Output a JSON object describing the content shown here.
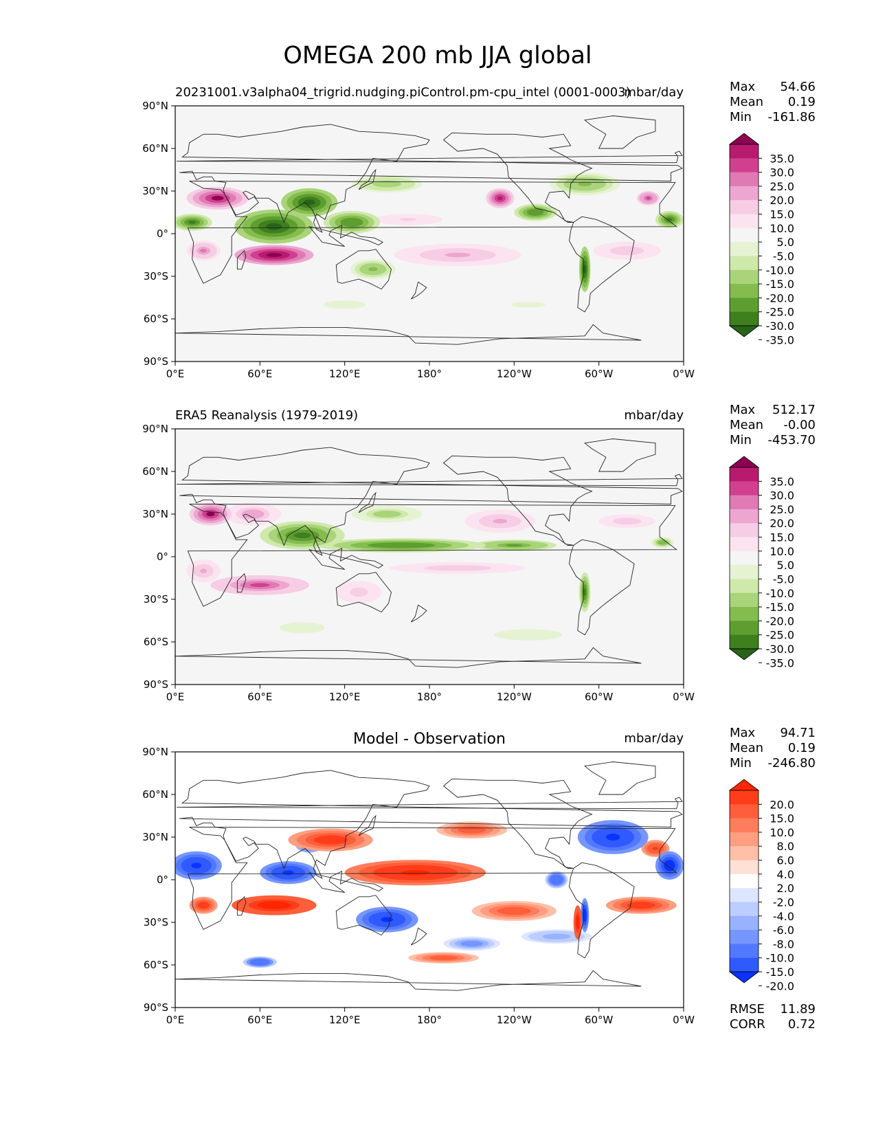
{
  "figure": {
    "title": "OMEGA 200 mb JJA global"
  },
  "chart_data": [
    {
      "type": "heatmap",
      "panel": "model",
      "title_left": "20231001.v3alpha04_trigrid.nudging.piControl.pm-cpu_intel (0001-0003)",
      "title_center": "",
      "units": "mbar/day",
      "stats": [
        {
          "label": "Max",
          "value": "54.66"
        },
        {
          "label": "Mean",
          "value": "0.19"
        },
        {
          "label": "Min",
          "value": "-161.86"
        }
      ],
      "colorbar": {
        "levels": [
          "35.0",
          "30.0",
          "25.0",
          "20.0",
          "15.0",
          "10.0",
          "5.0",
          "-5.0",
          "-10.0",
          "-15.0",
          "-20.0",
          "-25.0",
          "-30.0",
          "-35.0"
        ],
        "colors": [
          "#8e0152",
          "#b81a6e",
          "#d0408e",
          "#e07ab4",
          "#eca6d0",
          "#f6cde4",
          "#fbe4f0",
          "#f5f5f5",
          "#e6f3d3",
          "#cfe9ab",
          "#a9d47a",
          "#84bc4e",
          "#5e9e30",
          "#3e7f1e",
          "#276419"
        ],
        "extend": "both"
      },
      "xlabels": [
        "0°E",
        "60°E",
        "120°E",
        "180°",
        "120°W",
        "60°W",
        "0°W"
      ],
      "ylabels": [
        "90°N",
        "60°N",
        "30°N",
        "0°",
        "30°S",
        "60°S",
        "90°S"
      ],
      "blobs": [
        {
          "lon": 70,
          "lat": 5,
          "rx": 28,
          "ry": 12,
          "v": -40
        },
        {
          "lon": 95,
          "lat": 22,
          "rx": 20,
          "ry": 10,
          "v": -38
        },
        {
          "lon": 12,
          "lat": 8,
          "rx": 14,
          "ry": 6,
          "v": -35
        },
        {
          "lon": 125,
          "lat": 8,
          "rx": 20,
          "ry": 8,
          "v": -30
        },
        {
          "lon": 150,
          "lat": 35,
          "rx": 25,
          "ry": 6,
          "v": -20
        },
        {
          "lon": 255,
          "lat": 15,
          "rx": 15,
          "ry": 6,
          "v": -30
        },
        {
          "lon": 350,
          "lat": 10,
          "rx": 10,
          "ry": 6,
          "v": -35
        },
        {
          "lon": 290,
          "lat": 35,
          "rx": 25,
          "ry": 8,
          "v": -22
        },
        {
          "lon": 140,
          "lat": -25,
          "rx": 16,
          "ry": 7,
          "v": -22
        },
        {
          "lon": 290,
          "lat": -25,
          "rx": 4,
          "ry": 16,
          "v": -40
        },
        {
          "lon": 30,
          "lat": 25,
          "rx": 22,
          "ry": 8,
          "v": 35
        },
        {
          "lon": 70,
          "lat": -15,
          "rx": 28,
          "ry": 7,
          "v": 40
        },
        {
          "lon": 230,
          "lat": 25,
          "rx": 10,
          "ry": 7,
          "v": 30
        },
        {
          "lon": 335,
          "lat": 25,
          "rx": 8,
          "ry": 5,
          "v": 28
        },
        {
          "lon": 200,
          "lat": -15,
          "rx": 45,
          "ry": 8,
          "v": 15
        },
        {
          "lon": 320,
          "lat": -12,
          "rx": 30,
          "ry": 8,
          "v": 12
        },
        {
          "lon": 20,
          "lat": -12,
          "rx": 12,
          "ry": 7,
          "v": 20
        },
        {
          "lon": 165,
          "lat": 10,
          "rx": 30,
          "ry": 5,
          "v": 10
        },
        {
          "lon": 120,
          "lat": -50,
          "rx": 25,
          "ry": 5,
          "v": -8
        },
        {
          "lon": 250,
          "lat": -50,
          "rx": 30,
          "ry": 5,
          "v": -7
        }
      ]
    },
    {
      "type": "heatmap",
      "panel": "obs",
      "title_left": "ERA5 Reanalysis (1979-2019)",
      "title_center": "",
      "units": "mbar/day",
      "stats": [
        {
          "label": "Max",
          "value": "512.17"
        },
        {
          "label": "Mean",
          "value": "-0.00"
        },
        {
          "label": "Min",
          "value": "-453.70"
        }
      ],
      "colorbar": {
        "levels": [
          "35.0",
          "30.0",
          "25.0",
          "20.0",
          "15.0",
          "10.0",
          "5.0",
          "-5.0",
          "-10.0",
          "-15.0",
          "-20.0",
          "-25.0",
          "-30.0",
          "-35.0"
        ],
        "colors": [
          "#8e0152",
          "#b81a6e",
          "#d0408e",
          "#e07ab4",
          "#eca6d0",
          "#f6cde4",
          "#fbe4f0",
          "#f5f5f5",
          "#e6f3d3",
          "#cfe9ab",
          "#a9d47a",
          "#84bc4e",
          "#5e9e30",
          "#3e7f1e",
          "#276419"
        ],
        "extend": "both"
      },
      "xlabels": [
        "0°E",
        "60°E",
        "120°E",
        "180°",
        "120°W",
        "60°W",
        "0°W"
      ],
      "ylabels": [
        "90°N",
        "60°N",
        "30°N",
        "0°",
        "30°S",
        "60°S",
        "90°S"
      ],
      "blobs": [
        {
          "lon": 90,
          "lat": 15,
          "rx": 30,
          "ry": 10,
          "v": -32
        },
        {
          "lon": 160,
          "lat": 8,
          "rx": 60,
          "ry": 5,
          "v": -30
        },
        {
          "lon": 240,
          "lat": 8,
          "rx": 30,
          "ry": 4,
          "v": -28
        },
        {
          "lon": 150,
          "lat": 30,
          "rx": 25,
          "ry": 6,
          "v": -18
        },
        {
          "lon": 345,
          "lat": 10,
          "rx": 8,
          "ry": 4,
          "v": -25
        },
        {
          "lon": 290,
          "lat": -25,
          "rx": 4,
          "ry": 14,
          "v": -35
        },
        {
          "lon": 25,
          "lat": 30,
          "rx": 15,
          "ry": 8,
          "v": 35
        },
        {
          "lon": 55,
          "lat": 30,
          "rx": 20,
          "ry": 8,
          "v": 18
        },
        {
          "lon": 60,
          "lat": -20,
          "rx": 35,
          "ry": 7,
          "v": 25
        },
        {
          "lon": 230,
          "lat": 25,
          "rx": 25,
          "ry": 8,
          "v": 15
        },
        {
          "lon": 200,
          "lat": -8,
          "rx": 60,
          "ry": 5,
          "v": 12
        },
        {
          "lon": 320,
          "lat": 25,
          "rx": 25,
          "ry": 6,
          "v": 12
        },
        {
          "lon": 20,
          "lat": -10,
          "rx": 12,
          "ry": 8,
          "v": 15
        },
        {
          "lon": 130,
          "lat": -25,
          "rx": 16,
          "ry": 8,
          "v": 14
        },
        {
          "lon": 90,
          "lat": -50,
          "rx": 20,
          "ry": 5,
          "v": -10
        },
        {
          "lon": 250,
          "lat": -55,
          "rx": 30,
          "ry": 5,
          "v": -10
        }
      ]
    },
    {
      "type": "heatmap",
      "panel": "diff",
      "title_left": "",
      "title_center": "Model - Observation",
      "units": "mbar/day",
      "stats": [
        {
          "label": "Max",
          "value": "94.71"
        },
        {
          "label": "Mean",
          "value": "0.19"
        },
        {
          "label": "Min",
          "value": "-246.80"
        }
      ],
      "metrics": [
        {
          "label": "RMSE",
          "value": "11.89"
        },
        {
          "label": "CORR",
          "value": "0.72"
        }
      ],
      "colorbar": {
        "levels": [
          "20.0",
          "15.0",
          "10.0",
          "8.0",
          "6.0",
          "4.0",
          "2.0",
          "-2.0",
          "-4.0",
          "-6.0",
          "-8.0",
          "-10.0",
          "-15.0",
          "-20.0"
        ],
        "colors": [
          "#ff2600",
          "#ff3d1a",
          "#ff5e3a",
          "#ff7d5c",
          "#ff9e80",
          "#ffbfa8",
          "#ffe0d4",
          "#ffffff",
          "#dde6ff",
          "#bccdff",
          "#99b2ff",
          "#7596ff",
          "#5278ff",
          "#2e5aff",
          "#0a33ff"
        ],
        "extend": "both"
      },
      "xlabels": [
        "0°E",
        "60°E",
        "120°E",
        "180°",
        "120°W",
        "60°W",
        "0°W"
      ],
      "ylabels": [
        "90°N",
        "60°N",
        "30°N",
        "0°",
        "30°S",
        "60°S",
        "90°S"
      ],
      "blobs": [
        {
          "lon": 15,
          "lat": 10,
          "rx": 18,
          "ry": 10,
          "v": -22
        },
        {
          "lon": 80,
          "lat": 5,
          "rx": 20,
          "ry": 8,
          "v": -22
        },
        {
          "lon": 95,
          "lat": 25,
          "rx": 10,
          "ry": 6,
          "v": -18
        },
        {
          "lon": 150,
          "lat": -28,
          "rx": 22,
          "ry": 9,
          "v": -22
        },
        {
          "lon": 310,
          "lat": 30,
          "rx": 25,
          "ry": 12,
          "v": -22
        },
        {
          "lon": 350,
          "lat": 10,
          "rx": 10,
          "ry": 10,
          "v": -25
        },
        {
          "lon": 270,
          "lat": 0,
          "rx": 8,
          "ry": 6,
          "v": -15
        },
        {
          "lon": 210,
          "lat": -45,
          "rx": 20,
          "ry": 5,
          "v": -10
        },
        {
          "lon": 270,
          "lat": -40,
          "rx": 25,
          "ry": 5,
          "v": -8
        },
        {
          "lon": 60,
          "lat": -58,
          "rx": 12,
          "ry": 4,
          "v": -15
        },
        {
          "lon": 70,
          "lat": -18,
          "rx": 30,
          "ry": 7,
          "v": 25
        },
        {
          "lon": 170,
          "lat": 5,
          "rx": 50,
          "ry": 9,
          "v": 22
        },
        {
          "lon": 110,
          "lat": 28,
          "rx": 30,
          "ry": 8,
          "v": 18
        },
        {
          "lon": 210,
          "lat": 35,
          "rx": 25,
          "ry": 6,
          "v": 12
        },
        {
          "lon": 330,
          "lat": -18,
          "rx": 25,
          "ry": 6,
          "v": 18
        },
        {
          "lon": 240,
          "lat": -22,
          "rx": 30,
          "ry": 7,
          "v": 14
        },
        {
          "lon": 20,
          "lat": -18,
          "rx": 10,
          "ry": 6,
          "v": 18
        },
        {
          "lon": 340,
          "lat": 22,
          "rx": 10,
          "ry": 6,
          "v": 16
        },
        {
          "lon": 190,
          "lat": -55,
          "rx": 25,
          "ry": 4,
          "v": 12
        },
        {
          "lon": 290,
          "lat": -25,
          "rx": 3,
          "ry": 12,
          "v": -25
        },
        {
          "lon": 285,
          "lat": -30,
          "rx": 3,
          "ry": 12,
          "v": 25
        }
      ]
    }
  ]
}
